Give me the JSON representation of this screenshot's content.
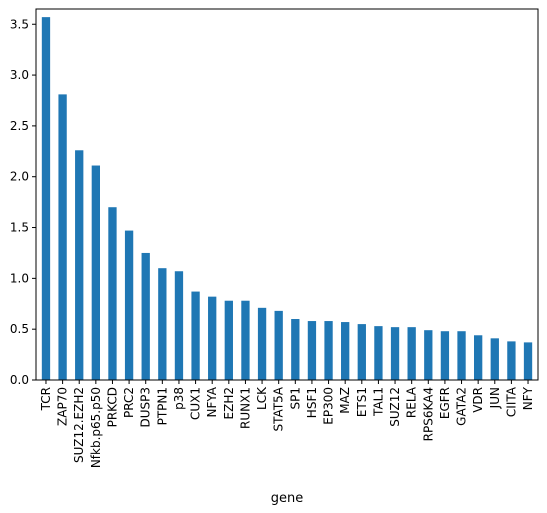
{
  "chart_data": {
    "type": "bar",
    "xlabel": "gene",
    "ylabel": "",
    "title": "",
    "ylim": [
      0,
      3.65
    ],
    "yticks": [
      0.0,
      0.5,
      1.0,
      1.5,
      2.0,
      2.5,
      3.0,
      3.5
    ],
    "ytick_labels": [
      "0.0",
      "0.5",
      "1.0",
      "1.5",
      "2.0",
      "2.5",
      "3.0",
      "3.5"
    ],
    "grid": false,
    "legend": "none",
    "bar_color": "#1f77b4",
    "categories": [
      "TCR",
      "ZAP70",
      "SUZ12.EZH2",
      "Nfkb.p65.p50",
      "PRKCD",
      "PRC2",
      "DUSP3",
      "PTPN1",
      "p38",
      "CUX1",
      "NFYA",
      "EZH2",
      "RUNX1",
      "LCK",
      "STAT5A",
      "SP1",
      "HSF1",
      "EP300",
      "MAZ",
      "ETS1",
      "TAL1",
      "SUZ12",
      "RELA",
      "RPS6KA4",
      "EGFR",
      "GATA2",
      "VDR",
      "JUN",
      "CIITA",
      "NFY"
    ],
    "values": [
      3.57,
      2.81,
      2.26,
      2.11,
      1.7,
      1.47,
      1.25,
      1.1,
      1.07,
      0.87,
      0.82,
      0.78,
      0.78,
      0.71,
      0.68,
      0.6,
      0.58,
      0.58,
      0.57,
      0.55,
      0.53,
      0.52,
      0.52,
      0.49,
      0.48,
      0.48,
      0.44,
      0.41,
      0.38,
      0.37
    ]
  }
}
